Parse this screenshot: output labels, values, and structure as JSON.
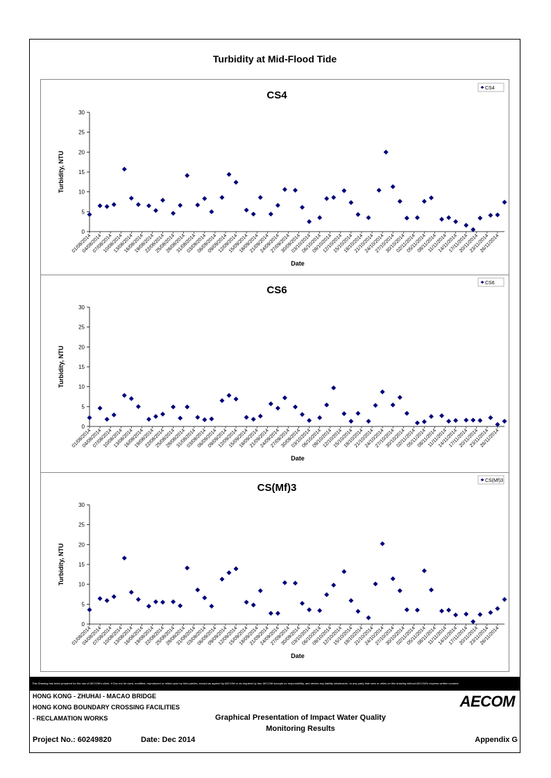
{
  "page_title": "Turbidity at Mid-Flood Tide",
  "disclaimer": "This Drawing has been prepared for the use of AECOM's client. It Doc not be used, modified, reproduced or relied upon by third parties, except as agreed by AECOM or as required by law. AECOM accepts no responsibility, and denies any liability whatsoever, to any party that uses or relies on this drawing without AECOM's express written consent.",
  "footer": {
    "line1": "HONG KONG - ZHUHAI - MACAO BRIDGE",
    "line2": "HONG KONG BOUNDARY CROSSING FACILITIES",
    "line3": "- RECLAMATION WORKS",
    "center1": "Graphical Presentation of Impact Water Quality",
    "center2": "Monitoring Results",
    "project": "Project No.: 60249820",
    "date": "Date: Dec 2014",
    "appendix": "Appendix G",
    "logo": "AECOM"
  },
  "colors": {
    "marker": "#00007a"
  },
  "chart_data": [
    {
      "type": "scatter",
      "title": "CS4",
      "xlabel": "Date",
      "ylabel": "Turbidity, NTU",
      "ylim": [
        0,
        30
      ],
      "yticks": [
        0,
        5,
        10,
        15,
        20,
        25,
        30
      ],
      "xlim": [
        "01/08/2014",
        "28/11/2014"
      ],
      "xticks": [
        "01/08/2014",
        "04/08/2014",
        "07/08/2014",
        "10/08/2014",
        "13/08/2014",
        "16/08/2014",
        "19/08/2014",
        "22/08/2014",
        "25/08/2014",
        "28/08/2014",
        "31/08/2014",
        "03/09/2014",
        "06/09/2014",
        "09/09/2014",
        "12/09/2014",
        "15/09/2014",
        "18/09/2014",
        "21/09/2014",
        "24/09/2014",
        "27/09/2014",
        "30/09/2014",
        "03/10/2014",
        "06/10/2014",
        "09/10/2014",
        "12/10/2014",
        "15/10/2014",
        "18/10/2014",
        "21/10/2014",
        "24/10/2014",
        "27/10/2014",
        "30/10/2014",
        "02/11/2014",
        "05/11/2014",
        "08/11/2014",
        "11/11/2014",
        "14/11/2014",
        "17/11/2014",
        "20/11/2014",
        "23/11/2014",
        "26/11/2014"
      ],
      "legend": "top-right",
      "grid": false,
      "series": [
        {
          "name": "CS4",
          "x": [
            "01/08/2014",
            "04/08/2014",
            "06/08/2014",
            "08/08/2014",
            "11/08/2014",
            "13/08/2014",
            "15/08/2014",
            "18/08/2014",
            "20/08/2014",
            "22/08/2014",
            "25/08/2014",
            "27/08/2014",
            "29/08/2014",
            "01/09/2014",
            "03/09/2014",
            "05/09/2014",
            "08/09/2014",
            "10/09/2014",
            "12/09/2014",
            "15/09/2014",
            "17/09/2014",
            "19/09/2014",
            "22/09/2014",
            "24/09/2014",
            "26/09/2014",
            "29/09/2014",
            "01/10/2014",
            "03/10/2014",
            "06/10/2014",
            "08/10/2014",
            "10/10/2014",
            "13/10/2014",
            "15/10/2014",
            "17/10/2014",
            "20/10/2014",
            "23/10/2014",
            "25/10/2014",
            "27/10/2014",
            "29/10/2014",
            "31/10/2014",
            "03/11/2014",
            "05/11/2014",
            "07/11/2014",
            "10/11/2014",
            "12/11/2014",
            "14/11/2014",
            "17/11/2014",
            "19/11/2014",
            "21/11/2014",
            "24/11/2014",
            "26/11/2014",
            "28/11/2014"
          ],
          "y": [
            4.3,
            6.5,
            6.3,
            6.8,
            15.7,
            8.4,
            6.8,
            6.5,
            5.3,
            7.9,
            4.6,
            6.6,
            14.1,
            6.7,
            8.3,
            5.0,
            8.6,
            14.4,
            12.4,
            5.4,
            4.4,
            8.6,
            4.4,
            6.6,
            10.6,
            10.4,
            6.1,
            2.5,
            3.5,
            8.3,
            8.6,
            10.3,
            7.3,
            4.3,
            3.5,
            10.4,
            20.0,
            11.3,
            7.6,
            3.4,
            3.5,
            7.6,
            8.5,
            3.1,
            3.5,
            2.5,
            1.6,
            0.5,
            3.4,
            4.1,
            4.2,
            7.4
          ]
        }
      ]
    },
    {
      "type": "scatter",
      "title": "CS6",
      "xlabel": "Date",
      "ylabel": "Turbidity, NTU",
      "ylim": [
        0,
        30
      ],
      "yticks": [
        0,
        5,
        10,
        15,
        20,
        25,
        30
      ],
      "xlim": [
        "01/08/2014",
        "28/11/2014"
      ],
      "xticks": [
        "01/08/2014",
        "04/08/2014",
        "07/08/2014",
        "10/08/2014",
        "13/08/2014",
        "16/08/2014",
        "19/08/2014",
        "22/08/2014",
        "25/08/2014",
        "28/08/2014",
        "31/08/2014",
        "03/09/2014",
        "06/09/2014",
        "09/09/2014",
        "12/09/2014",
        "15/09/2014",
        "18/09/2014",
        "21/09/2014",
        "24/09/2014",
        "27/09/2014",
        "30/09/2014",
        "03/10/2014",
        "06/10/2014",
        "09/10/2014",
        "12/10/2014",
        "15/10/2014",
        "18/10/2014",
        "21/10/2014",
        "24/10/2014",
        "27/10/2014",
        "30/10/2014",
        "02/11/2014",
        "05/11/2014",
        "08/11/2014",
        "11/11/2014",
        "14/11/2014",
        "17/11/2014",
        "20/11/2014",
        "23/11/2014",
        "26/11/2014"
      ],
      "legend": "top-right",
      "grid": false,
      "series": [
        {
          "name": "CS6",
          "x": [
            "01/08/2014",
            "04/08/2014",
            "06/08/2014",
            "08/08/2014",
            "11/08/2014",
            "13/08/2014",
            "15/08/2014",
            "18/08/2014",
            "20/08/2014",
            "22/08/2014",
            "25/08/2014",
            "27/08/2014",
            "29/08/2014",
            "01/09/2014",
            "03/09/2014",
            "05/09/2014",
            "08/09/2014",
            "10/09/2014",
            "12/09/2014",
            "15/09/2014",
            "17/09/2014",
            "19/09/2014",
            "22/09/2014",
            "24/09/2014",
            "26/09/2014",
            "29/09/2014",
            "01/10/2014",
            "03/10/2014",
            "06/10/2014",
            "08/10/2014",
            "10/10/2014",
            "13/10/2014",
            "15/10/2014",
            "17/10/2014",
            "20/10/2014",
            "22/10/2014",
            "24/10/2014",
            "27/10/2014",
            "29/10/2014",
            "31/10/2014",
            "03/11/2014",
            "05/11/2014",
            "07/11/2014",
            "10/11/2014",
            "12/11/2014",
            "14/11/2014",
            "17/11/2014",
            "19/11/2014",
            "21/11/2014",
            "24/11/2014",
            "26/11/2014",
            "28/11/2014"
          ],
          "y": [
            2.2,
            4.6,
            1.8,
            2.9,
            7.8,
            7.0,
            5.0,
            1.8,
            2.5,
            3.1,
            4.9,
            2.1,
            4.9,
            2.3,
            1.7,
            1.9,
            6.5,
            7.8,
            6.9,
            2.3,
            1.8,
            2.6,
            5.7,
            4.6,
            7.2,
            4.9,
            3.0,
            1.5,
            2.2,
            5.4,
            9.7,
            3.2,
            1.3,
            3.3,
            1.3,
            5.3,
            8.7,
            5.4,
            7.3,
            3.3,
            0.9,
            1.2,
            2.5,
            2.7,
            1.3,
            1.5,
            1.6,
            1.6,
            1.5,
            2.2,
            0.5,
            1.3
          ]
        }
      ]
    },
    {
      "type": "scatter",
      "title": "CS(Mf)3",
      "xlabel": "Date",
      "ylabel": "Turbidity, NTU",
      "ylim": [
        0,
        30
      ],
      "yticks": [
        0,
        5,
        10,
        15,
        20,
        25,
        30
      ],
      "xlim": [
        "01/08/2014",
        "28/11/2014"
      ],
      "xticks": [
        "01/08/2014",
        "04/08/2014",
        "07/08/2014",
        "10/08/2014",
        "13/08/2014",
        "16/08/2014",
        "19/08/2014",
        "22/08/2014",
        "25/08/2014",
        "28/08/2014",
        "31/08/2014",
        "03/09/2014",
        "06/09/2014",
        "09/09/2014",
        "12/09/2014",
        "15/09/2014",
        "18/09/2014",
        "21/09/2014",
        "24/09/2014",
        "27/09/2014",
        "30/09/2014",
        "03/10/2014",
        "06/10/2014",
        "09/10/2014",
        "12/10/2014",
        "15/10/2014",
        "18/10/2014",
        "21/10/2014",
        "24/10/2014",
        "27/10/2014",
        "30/10/2014",
        "02/11/2014",
        "05/11/2014",
        "08/11/2014",
        "11/11/2014",
        "14/11/2014",
        "17/11/2014",
        "20/11/2014",
        "23/11/2014",
        "26/11/2014"
      ],
      "legend": "top-right",
      "grid": false,
      "series": [
        {
          "name": "CS(Mf)3",
          "x": [
            "01/08/2014",
            "04/08/2014",
            "06/08/2014",
            "08/08/2014",
            "11/08/2014",
            "13/08/2014",
            "15/08/2014",
            "18/08/2014",
            "20/08/2014",
            "22/08/2014",
            "25/08/2014",
            "27/08/2014",
            "29/08/2014",
            "01/09/2014",
            "03/09/2014",
            "05/09/2014",
            "08/09/2014",
            "10/09/2014",
            "12/09/2014",
            "15/09/2014",
            "17/09/2014",
            "19/09/2014",
            "22/09/2014",
            "24/09/2014",
            "26/09/2014",
            "29/09/2014",
            "01/10/2014",
            "03/10/2014",
            "06/10/2014",
            "08/10/2014",
            "10/10/2014",
            "13/10/2014",
            "15/10/2014",
            "17/10/2014",
            "20/10/2014",
            "22/10/2014",
            "24/10/2014",
            "27/10/2014",
            "29/10/2014",
            "31/10/2014",
            "03/11/2014",
            "05/11/2014",
            "07/11/2014",
            "10/11/2014",
            "12/11/2014",
            "14/11/2014",
            "17/11/2014",
            "19/11/2014",
            "21/11/2014",
            "24/11/2014",
            "26/11/2014",
            "28/11/2014"
          ],
          "y": [
            3.6,
            6.4,
            5.9,
            6.9,
            16.6,
            8.0,
            6.2,
            4.5,
            5.6,
            5.5,
            5.6,
            4.6,
            14.1,
            8.6,
            6.6,
            4.5,
            11.3,
            12.9,
            13.9,
            5.5,
            4.8,
            8.4,
            2.7,
            2.7,
            10.4,
            10.3,
            5.2,
            3.6,
            3.4,
            7.4,
            9.8,
            13.2,
            5.9,
            3.2,
            1.6,
            10.1,
            20.2,
            11.4,
            8.4,
            3.6,
            3.5,
            13.4,
            8.6,
            3.3,
            3.5,
            2.3,
            2.5,
            0.6,
            2.4,
            2.9,
            3.9,
            6.2
          ]
        }
      ]
    }
  ]
}
